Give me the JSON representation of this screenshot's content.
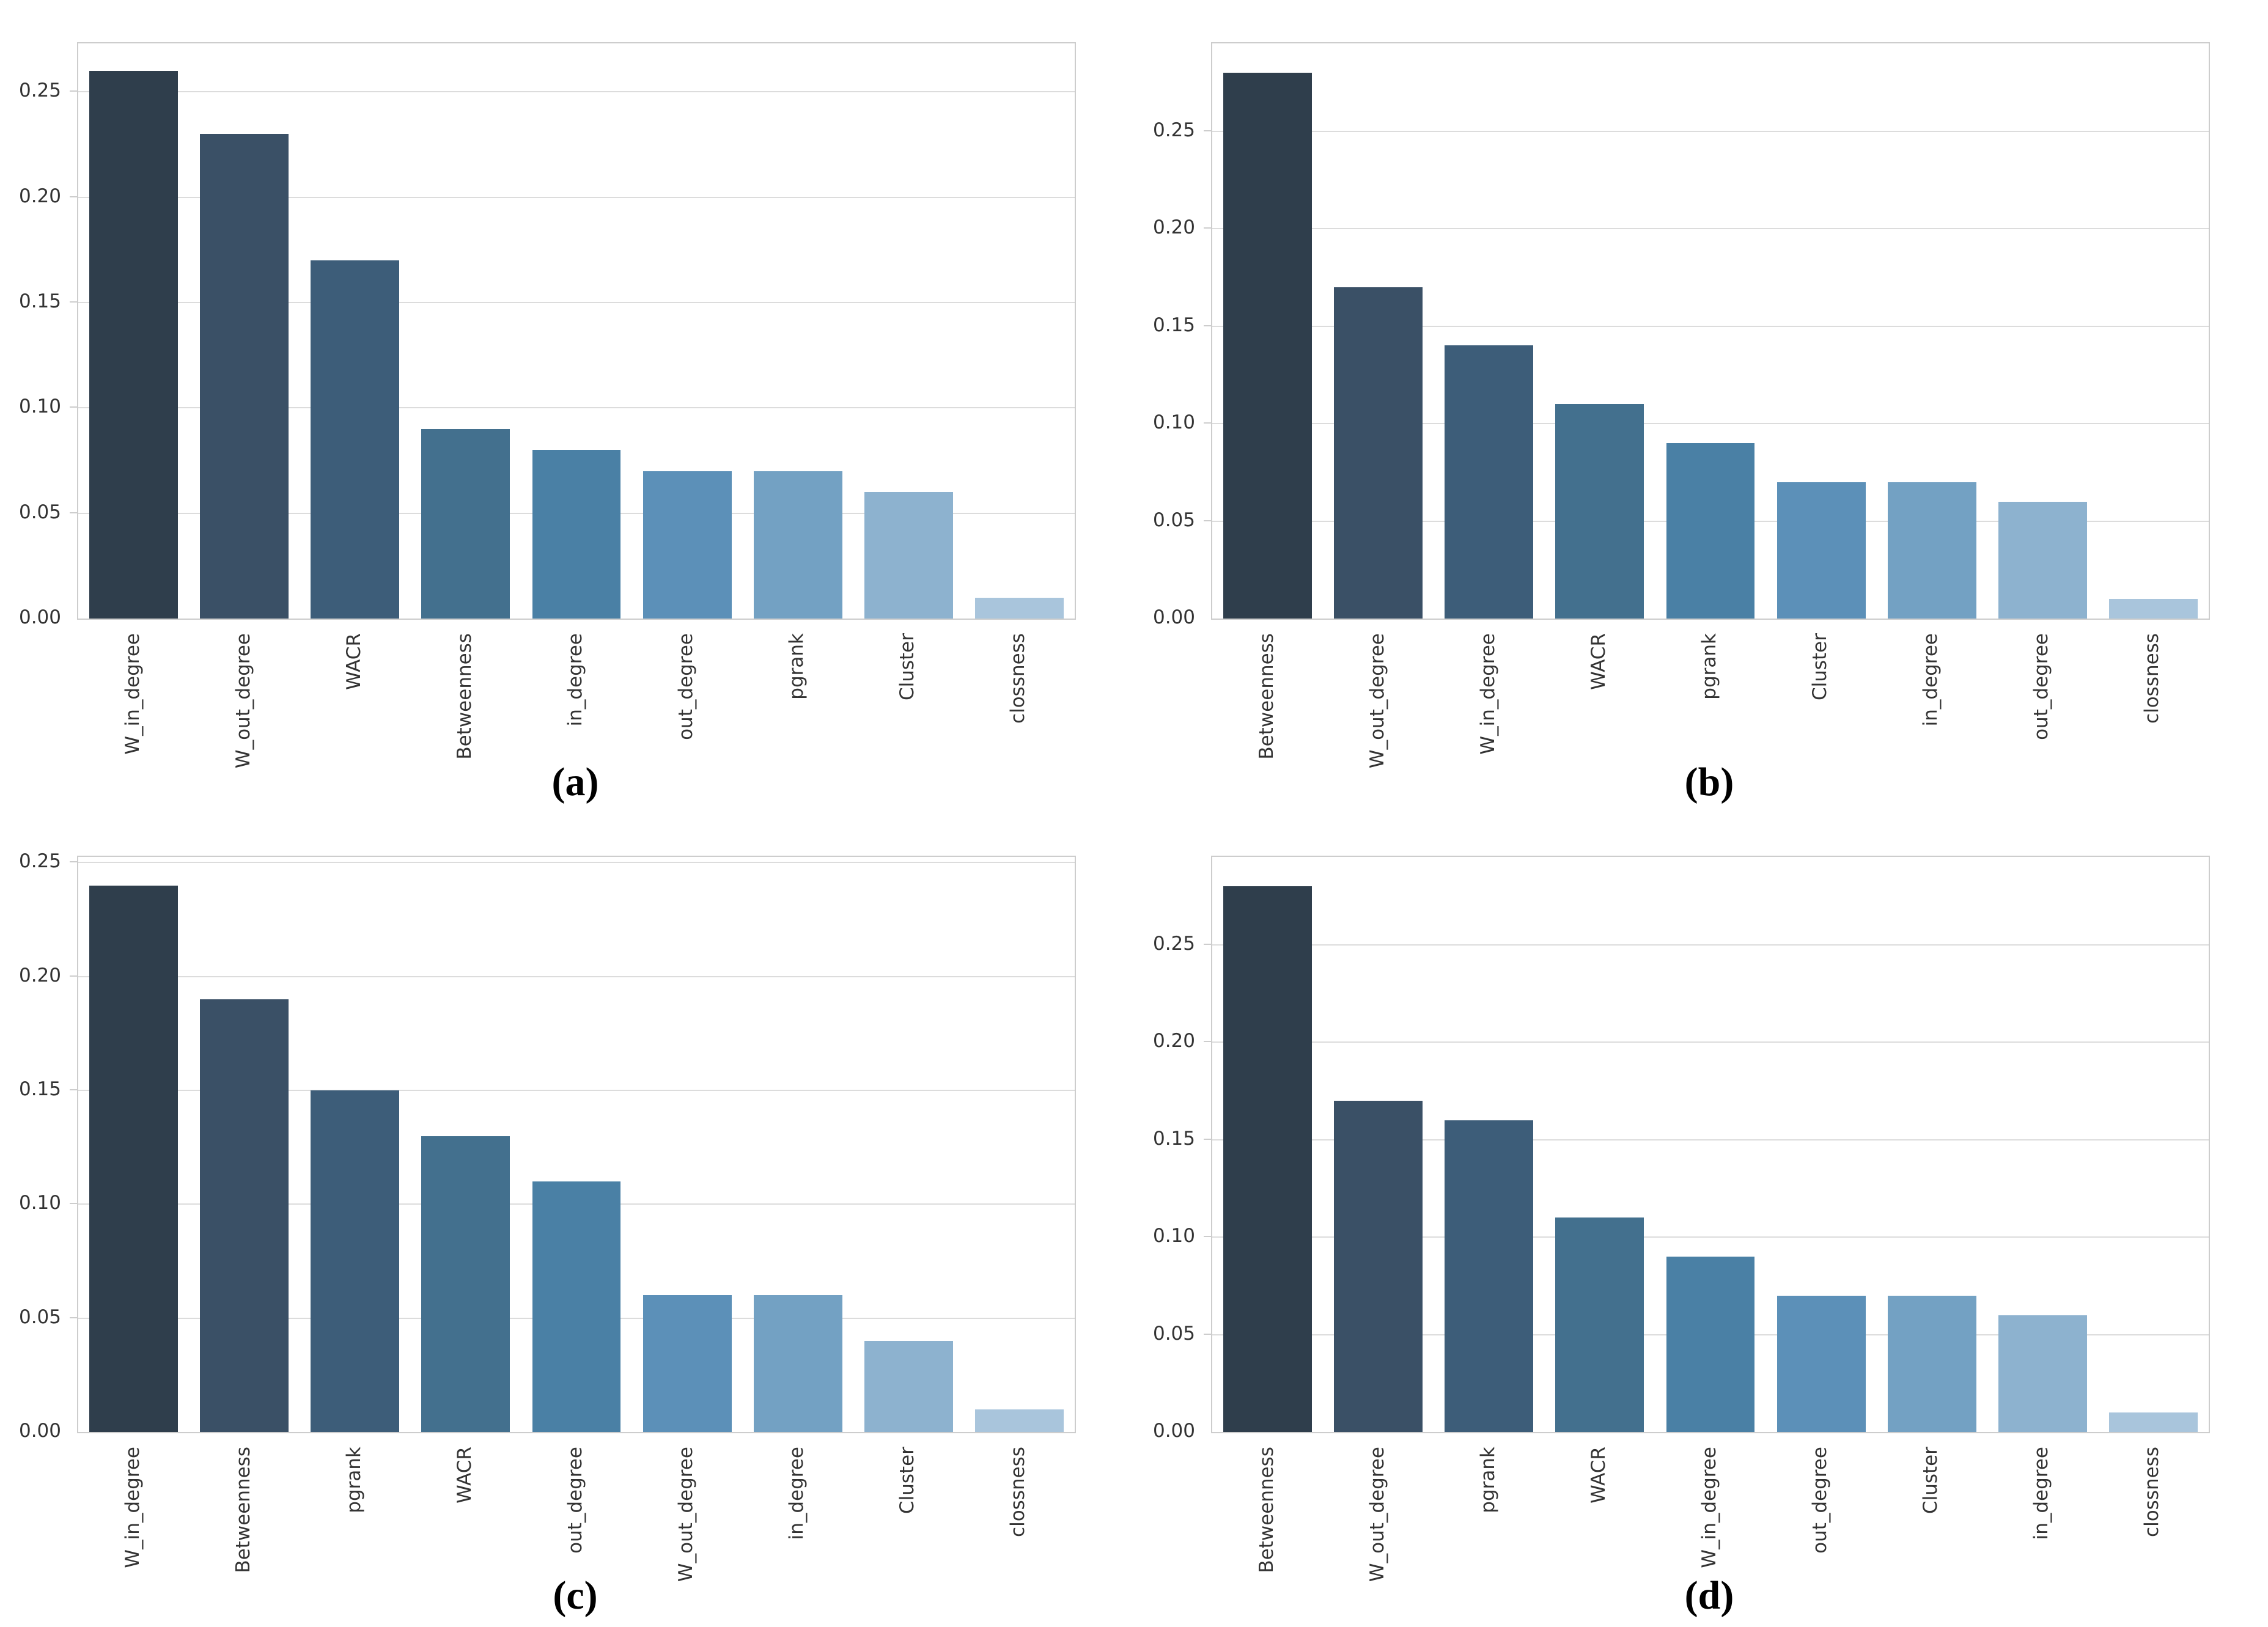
{
  "figure": {
    "background": "#ffffff",
    "grid_color": "#dcdcdc",
    "spine_color": "#cdcdcd",
    "tick_label_color": "#333333",
    "bar_palette_dark_to_light": [
      "#2f3e4c",
      "#3a5066",
      "#3d5d79",
      "#43708e",
      "#4a80a5",
      "#5c90b8",
      "#73a1c3",
      "#8db2cf",
      "#a9c5dc"
    ]
  },
  "chart_data": [
    {
      "id": "a",
      "type": "bar",
      "caption": "(a)",
      "categories": [
        "W_in_degree",
        "W_out_degree",
        "WACR",
        "Betweenness",
        "in_degree",
        "out_degree",
        "pgrank",
        "Cluster",
        "clossness"
      ],
      "values": [
        0.26,
        0.23,
        0.17,
        0.09,
        0.08,
        0.07,
        0.07,
        0.06,
        0.01
      ],
      "yticks": [
        0.0,
        0.05,
        0.1,
        0.15,
        0.2,
        0.25
      ],
      "ylim": [
        0,
        0.273
      ],
      "xlabel": "",
      "ylabel": "",
      "grid": true,
      "legend": null
    },
    {
      "id": "b",
      "type": "bar",
      "caption": "(b)",
      "categories": [
        "Betweenness",
        "W_out_degree",
        "W_in_degree",
        "WACR",
        "pgrank",
        "Cluster",
        "in_degree",
        "out_degree",
        "clossness"
      ],
      "values": [
        0.28,
        0.17,
        0.14,
        0.11,
        0.09,
        0.07,
        0.07,
        0.06,
        0.01
      ],
      "yticks": [
        0.0,
        0.05,
        0.1,
        0.15,
        0.2,
        0.25
      ],
      "ylim": [
        0,
        0.295
      ],
      "xlabel": "",
      "ylabel": "",
      "grid": true,
      "legend": null
    },
    {
      "id": "c",
      "type": "bar",
      "caption": "(c)",
      "categories": [
        "W_in_degree",
        "Betweenness",
        "pgrank",
        "WACR",
        "out_degree",
        "W_out_degree",
        "in_degree",
        "Cluster",
        "clossness"
      ],
      "values": [
        0.24,
        0.19,
        0.15,
        0.13,
        0.11,
        0.06,
        0.06,
        0.04,
        0.01
      ],
      "yticks": [
        0.0,
        0.05,
        0.1,
        0.15,
        0.2,
        0.25
      ],
      "ylim": [
        0,
        0.2525
      ],
      "xlabel": "",
      "ylabel": "",
      "grid": true,
      "legend": null
    },
    {
      "id": "d",
      "type": "bar",
      "caption": "(d)",
      "categories": [
        "Betweenness",
        "W_out_degree",
        "pgrank",
        "WACR",
        "W_in_degree",
        "out_degree",
        "Cluster",
        "in_degree",
        "clossness"
      ],
      "values": [
        0.28,
        0.17,
        0.16,
        0.11,
        0.09,
        0.07,
        0.07,
        0.06,
        0.01
      ],
      "yticks": [
        0.0,
        0.05,
        0.1,
        0.15,
        0.2,
        0.25
      ],
      "ylim": [
        0,
        0.295
      ],
      "xlabel": "",
      "ylabel": "",
      "grid": true,
      "legend": null
    }
  ]
}
